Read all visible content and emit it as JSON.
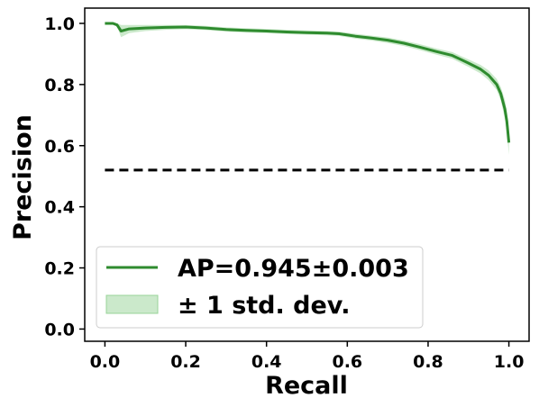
{
  "chart_data": {
    "type": "line",
    "xlabel": "Recall",
    "ylabel": "Precision",
    "xlim": [
      -0.05,
      1.05
    ],
    "ylim": [
      -0.04,
      1.05
    ],
    "xticks": [
      0.0,
      0.2,
      0.4,
      0.6,
      0.8,
      1.0
    ],
    "xtick_labels": [
      "0.0",
      "0.2",
      "0.4",
      "0.6",
      "0.8",
      "1.0"
    ],
    "yticks": [
      0.0,
      0.2,
      0.4,
      0.6,
      0.8,
      1.0
    ],
    "ytick_labels": [
      "0.0",
      "0.2",
      "0.4",
      "0.6",
      "0.8",
      "1.0"
    ],
    "grid": false,
    "legend_position": "lower-left",
    "series": [
      {
        "name": "AP=0.945±0.003",
        "kind": "mean",
        "color": "#2e8b2e",
        "x": [
          0.0,
          0.02,
          0.03,
          0.04,
          0.06,
          0.1,
          0.15,
          0.2,
          0.25,
          0.3,
          0.35,
          0.4,
          0.45,
          0.5,
          0.55,
          0.58,
          0.62,
          0.66,
          0.7,
          0.74,
          0.78,
          0.82,
          0.86,
          0.9,
          0.93,
          0.95,
          0.97,
          0.98,
          0.99,
          0.995,
          1.0
        ],
        "y": [
          1.0,
          1.0,
          0.995,
          0.975,
          0.982,
          0.985,
          0.987,
          0.988,
          0.985,
          0.98,
          0.977,
          0.975,
          0.972,
          0.97,
          0.968,
          0.966,
          0.958,
          0.952,
          0.945,
          0.935,
          0.922,
          0.908,
          0.895,
          0.87,
          0.85,
          0.83,
          0.8,
          0.77,
          0.72,
          0.68,
          0.61
        ]
      },
      {
        "name": "± 1 std. dev.",
        "kind": "band",
        "color": "#98d498",
        "x": [
          0.0,
          0.02,
          0.03,
          0.04,
          0.06,
          0.1,
          0.15,
          0.2,
          0.25,
          0.3,
          0.35,
          0.4,
          0.45,
          0.5,
          0.55,
          0.58,
          0.62,
          0.66,
          0.7,
          0.74,
          0.78,
          0.82,
          0.86,
          0.9,
          0.93,
          0.95,
          0.97,
          0.98,
          0.99,
          0.995,
          1.0
        ],
        "lower": [
          1.0,
          1.0,
          0.99,
          0.955,
          0.968,
          0.975,
          0.979,
          0.981,
          0.978,
          0.973,
          0.97,
          0.968,
          0.965,
          0.963,
          0.961,
          0.959,
          0.95,
          0.944,
          0.936,
          0.926,
          0.912,
          0.898,
          0.884,
          0.858,
          0.836,
          0.814,
          0.782,
          0.748,
          0.69,
          0.645,
          0.57
        ],
        "upper": [
          1.0,
          1.0,
          1.0,
          0.995,
          0.995,
          0.995,
          0.995,
          0.995,
          0.992,
          0.987,
          0.984,
          0.982,
          0.979,
          0.977,
          0.975,
          0.973,
          0.966,
          0.96,
          0.954,
          0.944,
          0.932,
          0.918,
          0.906,
          0.882,
          0.864,
          0.846,
          0.818,
          0.792,
          0.75,
          0.715,
          0.65
        ]
      },
      {
        "name": "",
        "kind": "baseline",
        "color": "#000000",
        "x": [
          0.0,
          1.0
        ],
        "y": [
          0.52,
          0.52
        ]
      }
    ]
  },
  "colors": {
    "mean_line": "#2e8b2e",
    "band_fill": "#98d498",
    "baseline": "#000000",
    "legend_border": "#cccccc"
  }
}
